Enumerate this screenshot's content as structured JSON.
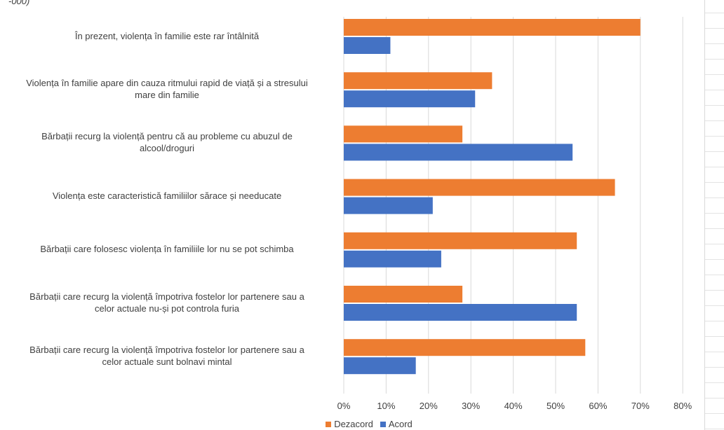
{
  "chart_data": {
    "type": "bar",
    "orientation": "horizontal",
    "title": "",
    "top_clipped_text": "-000)",
    "categories": [
      "În prezent, violența în familie este rar întâlnită",
      "Violența în familie apare din cauza ritmului rapid de viață și a stresului mare din familie",
      "Bărbații recurg la violență pentru că au probleme cu abuzul de alcool/droguri",
      "Violența este caracteristică familiilor sărace și needucate",
      "Bărbații care folosesc violența în familiile lor nu se pot schimba",
      "Bărbații care recurg la violență împotriva fostelor lor partenere sau a celor actuale nu-și pot controla furia",
      "Bărbații care recurg la violență împotriva fostelor lor partenere sau a celor actuale sunt bolnavi mintal"
    ],
    "category_lines": [
      [
        "În prezent, violența în familie este rar întâlnită"
      ],
      [
        "Violența în familie apare din cauza ritmului rapid de viață și a stresului",
        "mare din familie"
      ],
      [
        "Bărbații recurg la violență pentru că au probleme cu abuzul de",
        "alcool/droguri"
      ],
      [
        "Violența este caracteristică familiilor sărace și needucate"
      ],
      [
        "Bărbații care folosesc violența în familiile lor nu se pot schimba"
      ],
      [
        "Bărbații care recurg la violență împotriva fostelor lor partenere sau a",
        "celor actuale nu-și pot controla furia"
      ],
      [
        "Bărbații care recurg la violență împotriva fostelor lor partenere sau a",
        "celor actuale sunt bolnavi mintal"
      ]
    ],
    "series": [
      {
        "name": "Dezacord",
        "color": "#ED7D31",
        "values": [
          70,
          35,
          28,
          64,
          55,
          28,
          57
        ]
      },
      {
        "name": "Acord",
        "color": "#4472C4",
        "values": [
          11,
          31,
          54,
          21,
          23,
          55,
          17
        ]
      }
    ],
    "x_ticks": [
      "0%",
      "10%",
      "20%",
      "30%",
      "40%",
      "50%",
      "60%",
      "70%",
      "80%"
    ],
    "xlim": [
      0,
      80
    ],
    "grid": true,
    "legend_position": "bottom",
    "gridline_color": "#d9d9d9"
  }
}
